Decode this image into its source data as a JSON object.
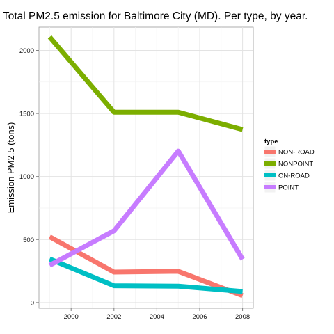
{
  "chart_data": {
    "type": "line",
    "title": "Total PM2.5 emission for Baltimore City (MD). Per type, by year.",
    "xlabel": "",
    "ylabel": "Emission PM2.5 (tons)",
    "x": [
      1999,
      2002,
      2005,
      2008
    ],
    "xlim": [
      1998.5,
      2008.5
    ],
    "ylim": [
      -45,
      2185
    ],
    "xticks": [
      2000,
      2002,
      2004,
      2006,
      2008
    ],
    "yticks": [
      0,
      500,
      1000,
      1500,
      2000
    ],
    "x_minor": [
      1999,
      2001,
      2003,
      2005,
      2007
    ],
    "y_minor": [
      250,
      750,
      1250,
      1750
    ],
    "grid": true,
    "legend_title": "type",
    "legend_position": "right",
    "series": [
      {
        "name": "NON-ROAD",
        "color": "#F8766D",
        "values": [
          522,
          242,
          248,
          55
        ]
      },
      {
        "name": "NONPOINT",
        "color": "#7CAE00",
        "values": [
          2107,
          1510,
          1510,
          1373
        ]
      },
      {
        "name": "ON-ROAD",
        "color": "#00BFC4",
        "values": [
          346,
          134,
          130,
          88
        ]
      },
      {
        "name": "POINT",
        "color": "#C77CFF",
        "values": [
          296,
          569,
          1202,
          344
        ]
      }
    ]
  }
}
